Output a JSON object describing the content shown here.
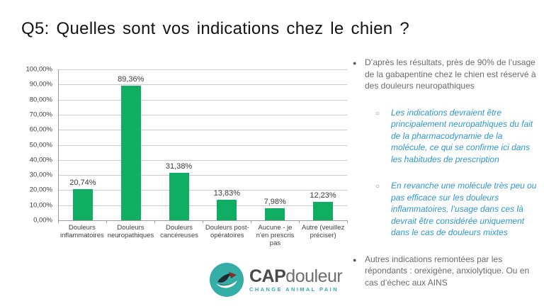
{
  "slide": {
    "title": "Q5: Quelles sont vos indications chez le chien ?"
  },
  "chart_data": {
    "type": "bar",
    "title": "",
    "xlabel": "",
    "ylabel": "",
    "categories": [
      "Douleurs inflammatoires",
      "Douleurs neuropathiques",
      "Douleurs cancéreuses",
      "Douleurs post-opératoires",
      "Aucune - je n'en prescris pas",
      "Autre (veuillez préciser)"
    ],
    "values": [
      20.74,
      89.36,
      31.38,
      13.83,
      7.98,
      12.23
    ],
    "value_labels": [
      "20,74%",
      "89,36%",
      "31,38%",
      "13,83%",
      "7,98%",
      "12,23%"
    ],
    "y_ticks": [
      "100,00%",
      "90,00%",
      "80,00%",
      "70,00%",
      "60,00%",
      "50,00%",
      "40,00%",
      "30,00%",
      "20,00%",
      "10,00%",
      "0,00%"
    ],
    "ylim": [
      0,
      100
    ],
    "grid": true,
    "legend": false,
    "bar_color": "#0fae62",
    "gridline_color": "#cccccc",
    "axis_color": "#9b9b9b"
  },
  "right_panel": {
    "bullets": [
      {
        "level": 1,
        "text": "D’après les résultats, près de 90% de l’usage de la gabapentine chez le chien est réservé à des douleurs neuropathiques"
      },
      {
        "level": 2,
        "text": "Les indications devraient être principalement neuropathiques du fait de la pharmacodynamie de la molécule, ce qui se confirme ici dans les habitudes de prescription"
      },
      {
        "level": 2,
        "text": "En revanche une molécule très peu ou pas efficace sur les douleurs inflammatoires, l’usage dans ces là devrait être considérée uniquement dans le cas de douleurs mixtes"
      },
      {
        "level": 1,
        "text": "Autres indications remontées par les répondants : orexigène, anxiolytique. Ou en cas d’échec aux AINS"
      }
    ],
    "text_color": "#6b6b6b",
    "accent_text_color": "#2e97d4"
  },
  "logo": {
    "name_part1": "CAP",
    "name_part2": "douleur",
    "tagline": "CHANGE ANIMAL PAIN",
    "teal": "#35aea7",
    "dark": "#1d2a34",
    "rust": "#7e3124"
  }
}
